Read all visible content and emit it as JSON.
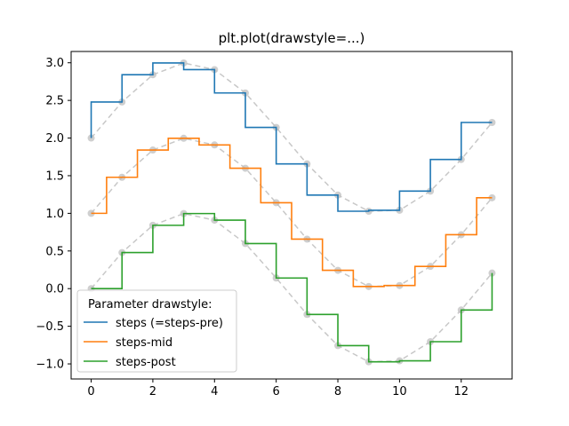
{
  "chart_data": {
    "type": "line",
    "title": "plt.plot(drawstyle=...)",
    "xlabel": "",
    "ylabel": "",
    "xlim": [
      -0.65,
      13.65
    ],
    "ylim": [
      -1.2,
      3.15
    ],
    "x": [
      0,
      1,
      2,
      3,
      4,
      5,
      6,
      7,
      8,
      9,
      10,
      11,
      12,
      13
    ],
    "xticks": [
      0,
      2,
      4,
      6,
      8,
      10,
      12
    ],
    "xtick_labels": [
      "0",
      "2",
      "4",
      "6",
      "8",
      "10",
      "12"
    ],
    "yticks": [
      -1.0,
      -0.5,
      0.0,
      0.5,
      1.0,
      1.5,
      2.0,
      2.5,
      3.0
    ],
    "ytick_labels": [
      "−1.0",
      "−0.5",
      "0.0",
      "0.5",
      "1.0",
      "1.5",
      "2.0",
      "2.5",
      "3.0"
    ],
    "grid": false,
    "legend": {
      "title": "Parameter drawstyle:",
      "placement": "lower-left"
    },
    "series": [
      {
        "name": "steps (=steps-pre)",
        "drawstyle": "steps-pre",
        "color": "#1f77b4",
        "values": [
          2.0,
          2.479,
          2.841,
          2.997,
          2.909,
          2.599,
          2.141,
          1.657,
          1.243,
          1.028,
          1.041,
          1.295,
          1.716,
          2.207
        ]
      },
      {
        "name": "steps-mid",
        "drawstyle": "steps-mid",
        "color": "#ff7f0e",
        "values": [
          1.0,
          1.479,
          1.841,
          1.997,
          1.909,
          1.599,
          1.141,
          0.657,
          0.243,
          0.028,
          0.041,
          0.295,
          0.716,
          1.207
        ]
      },
      {
        "name": "steps-post",
        "drawstyle": "steps-post",
        "color": "#2ca02c",
        "values": [
          0.0,
          0.479,
          0.841,
          0.997,
          0.909,
          0.599,
          0.141,
          -0.343,
          -0.757,
          -0.972,
          -0.959,
          -0.705,
          -0.284,
          0.207
        ]
      }
    ],
    "reference_style": {
      "line_color": "#c8c8c8",
      "marker_color": "#bfbfbf"
    }
  }
}
